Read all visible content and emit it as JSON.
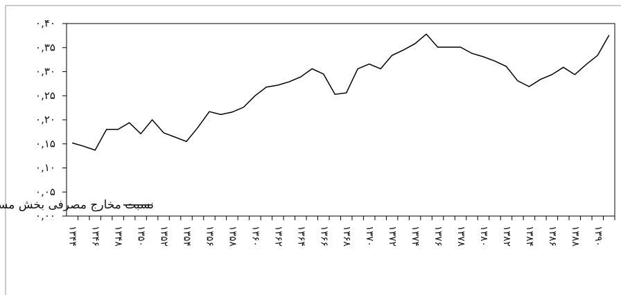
{
  "chart_data": {
    "type": "line",
    "categories": [
      "۱۳۴۴",
      null,
      "۱۳۴۶",
      null,
      "۱۳۴۸",
      null,
      "۱۳۵۰",
      null,
      "۱۳۵۲",
      null,
      "۱۳۵۴",
      null,
      "۱۳۵۶",
      null,
      "۱۳۵۸",
      null,
      "۱۳۶۰",
      null,
      "۱۳۶۲",
      null,
      "۱۳۶۴",
      null,
      "۱۳۶۶",
      null,
      "۱۳۶۸",
      null,
      "۱۳۷۰",
      null,
      "۱۳۷۲",
      null,
      "۱۳۷۴",
      null,
      "۱۳۷۶",
      null,
      "۱۳۷۸",
      null,
      "۱۳۸۰",
      null,
      "۱۳۸۲",
      null,
      "۱۳۸۴",
      null,
      "۱۳۸۶",
      null,
      "۱۳۸۸",
      null,
      "۱۳۹۰",
      null
    ],
    "series": [
      {
        "name": "نسبت مخارج مصرفی بخش مسکن به..",
        "color": "#000000",
        "values": [
          0.152,
          0.145,
          0.137,
          0.18,
          0.18,
          0.194,
          0.171,
          0.2,
          0.173,
          0.164,
          0.155,
          0.184,
          0.217,
          0.211,
          0.216,
          0.226,
          0.25,
          0.268,
          0.272,
          0.279,
          0.289,
          0.306,
          0.295,
          0.253,
          0.256,
          0.306,
          0.316,
          0.306,
          0.334,
          0.345,
          0.358,
          0.378,
          0.351,
          0.351,
          0.351,
          0.338,
          0.331,
          0.322,
          0.311,
          0.281,
          0.269,
          0.284,
          0.294,
          0.309,
          0.294,
          0.315,
          0.334,
          0.376
        ]
      }
    ],
    "ylim": [
      0,
      0.4
    ],
    "yticks": [
      {
        "value": 0,
        "label": "۰,۰۰"
      },
      {
        "value": 0.05,
        "label": "۰,۰۵"
      },
      {
        "value": 0.1,
        "label": "۰,۱۰"
      },
      {
        "value": 0.15,
        "label": "۰,۱۵"
      },
      {
        "value": 0.2,
        "label": "۰,۲۰"
      },
      {
        "value": 0.25,
        "label": "۰,۲۵"
      },
      {
        "value": 0.3,
        "label": "۰,۳۰"
      },
      {
        "value": 0.35,
        "label": "۰,۳۵"
      },
      {
        "value": 0.4,
        "label": "۰,۴۰"
      }
    ],
    "legend": "bottom-left"
  }
}
